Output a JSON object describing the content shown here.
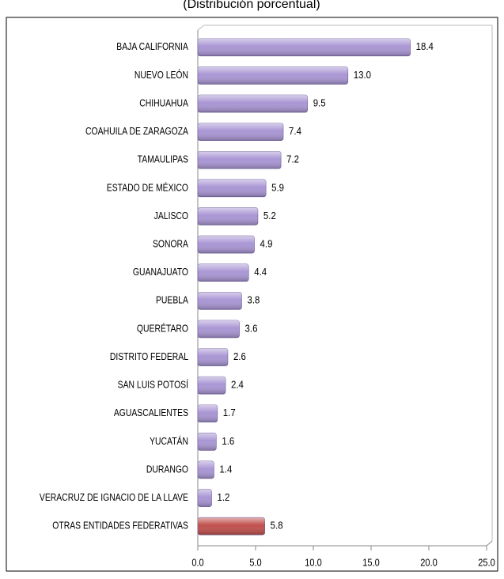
{
  "chart_data": {
    "type": "bar",
    "orientation": "horizontal",
    "subtitle": "(Distribución porcentual)",
    "categories": [
      "BAJA CALIFORNIA",
      "NUEVO LEÓN",
      "CHIHUAHUA",
      "COAHUILA DE ZARAGOZA",
      "TAMAULIPAS",
      "ESTADO DE MÉXICO",
      "JALISCO",
      "SONORA",
      "GUANAJUATO",
      "PUEBLA",
      "QUERÉTARO",
      "DISTRITO FEDERAL",
      "SAN LUIS POTOSÍ",
      "AGUASCALIENTES",
      "YUCATÁN",
      "DURANGO",
      "VERACRUZ DE IGNACIO DE LA LLAVE",
      "OTRAS ENTIDADES FEDERATIVAS"
    ],
    "values": [
      18.4,
      13.0,
      9.5,
      7.4,
      7.2,
      5.9,
      5.2,
      4.9,
      4.4,
      3.8,
      3.6,
      2.6,
      2.4,
      1.7,
      1.6,
      1.4,
      1.2,
      5.8
    ],
    "value_labels": [
      "18.4",
      "13.0",
      "9.5",
      "7.4",
      "7.2",
      "5.9",
      "5.2",
      "4.9",
      "4.4",
      "3.8",
      "3.6",
      "2.6",
      "2.4",
      "1.7",
      "1.6",
      "1.4",
      "1.2",
      "5.8"
    ],
    "colors": [
      "#a996d4",
      "#a996d4",
      "#a996d4",
      "#a996d4",
      "#a996d4",
      "#a996d4",
      "#a996d4",
      "#a996d4",
      "#a996d4",
      "#a996d4",
      "#a996d4",
      "#a996d4",
      "#a996d4",
      "#a996d4",
      "#a996d4",
      "#a996d4",
      "#a996d4",
      "#c0504d"
    ],
    "xlim": [
      0,
      25
    ],
    "xticks": [
      {
        "value": 0,
        "label": "0.0"
      },
      {
        "value": 5,
        "label": "5.0"
      },
      {
        "value": 10,
        "label": "10.0"
      },
      {
        "value": 15,
        "label": "15.0"
      },
      {
        "value": 20,
        "label": "20.0"
      },
      {
        "value": 25,
        "label": "25.0"
      }
    ]
  }
}
